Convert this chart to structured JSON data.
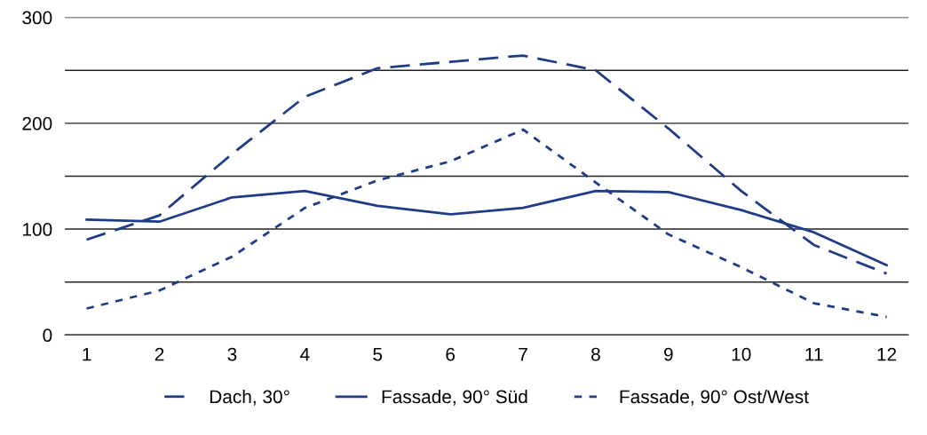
{
  "chart_data": {
    "type": "line",
    "categories": [
      "1",
      "2",
      "3",
      "4",
      "5",
      "6",
      "7",
      "8",
      "9",
      "10",
      "11",
      "12"
    ],
    "series": [
      {
        "name": "Dach, 30°",
        "color": "#1f3c88",
        "line_style": "dashed",
        "values": [
          90,
          113,
          171,
          225,
          252,
          258,
          264,
          250,
          195,
          136,
          85,
          58
        ]
      },
      {
        "name": "Fassade, 90° Süd",
        "color": "#1f3c88",
        "line_style": "solid",
        "values": [
          109,
          107,
          130,
          136,
          122,
          114,
          120,
          136,
          135,
          118,
          97,
          66
        ]
      },
      {
        "name": "Fassade, 90° Ost/West",
        "color": "#1f3c88",
        "line_style": "dotted",
        "values": [
          25,
          42,
          74,
          120,
          146,
          164,
          194,
          144,
          95,
          64,
          30,
          17
        ]
      }
    ],
    "ylim": [
      0,
      300
    ],
    "yticks": [
      0,
      {
        "value": 50,
        "label": null
      },
      100,
      {
        "value": 150,
        "label": null
      },
      200,
      {
        "value": 250,
        "label": null
      },
      300
    ],
    "grid": "y",
    "legend": "bottom",
    "marker": "none"
  }
}
